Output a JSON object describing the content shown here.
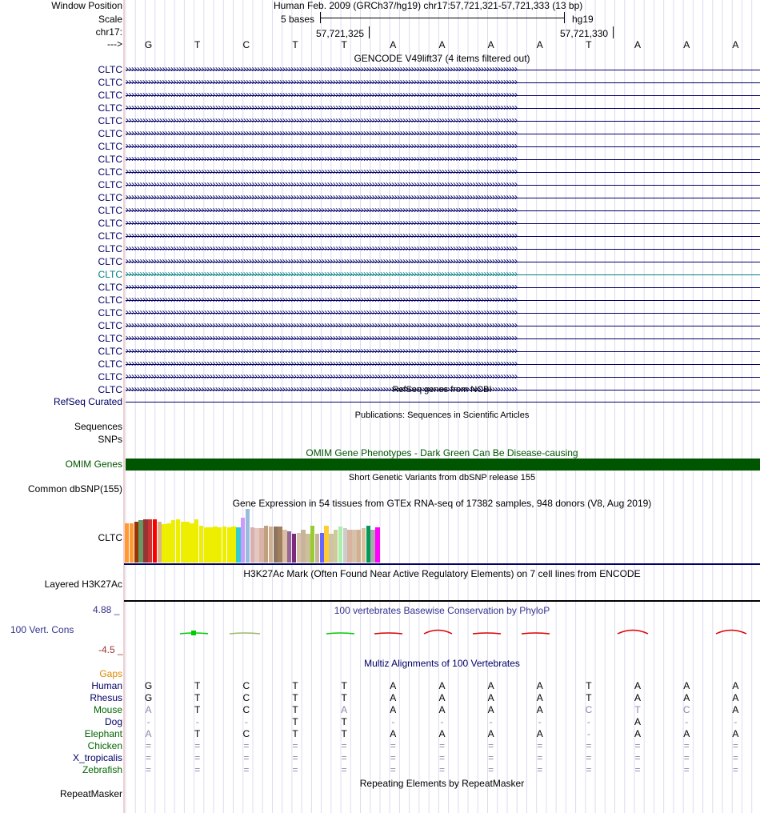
{
  "header": {
    "labels": [
      "Window Position",
      "Scale",
      "chr17:",
      "--->"
    ],
    "position_text": "Human Feb. 2009 (GRCh37/hg19)   chr17:57,721,321-57,721,333 (13 bp)",
    "scale_text": "5 bases",
    "assembly": "hg19",
    "coord_left": "57,721,325",
    "coord_right": "57,721,330",
    "bases": [
      "G",
      "T",
      "C",
      "T",
      "T",
      "A",
      "A",
      "A",
      "A",
      "T",
      "A",
      "A",
      "A"
    ]
  },
  "gencode": {
    "title": "GENCODE V49lift37 (4 items filtered out)",
    "genes": [
      "CLTC",
      "CLTC",
      "CLTC",
      "CLTC",
      "CLTC",
      "CLTC",
      "CLTC",
      "CLTC",
      "CLTC",
      "CLTC",
      "CLTC",
      "CLTC",
      "CLTC",
      "CLTC",
      "CLTC",
      "CLTC",
      "CLTC",
      "CLTC",
      "CLTC",
      "CLTC",
      "CLTC",
      "CLTC",
      "CLTC",
      "CLTC",
      "CLTC",
      "CLTC"
    ],
    "highlight_index": 16
  },
  "refseq": {
    "title": "RefSeq genes from NCBI",
    "label": "RefSeq Curated"
  },
  "publications": {
    "title": "Publications: Sequences in Scientific Articles",
    "label1": "Sequences",
    "label2": "SNPs"
  },
  "omim": {
    "title": "OMIM Gene Phenotypes - Dark Green Can Be Disease-causing",
    "label": "OMIM Genes",
    "color": "#005500"
  },
  "dbsnp": {
    "title": "Short Genetic Variants from dbSNP release 155",
    "label": "Common dbSNP(155)"
  },
  "gtex": {
    "title": "Gene Expression in 54 tissues from GTEx RNA-seq of 17382 samples, 948 donors (V8, Aug 2019)",
    "label": "CLTC",
    "bars": [
      {
        "c": "#ff9933",
        "v": 0.72
      },
      {
        "c": "#ff9933",
        "v": 0.72
      },
      {
        "c": "#993300",
        "v": 0.75
      },
      {
        "c": "#669966",
        "v": 0.78
      },
      {
        "c": "#993333",
        "v": 0.8
      },
      {
        "c": "#cc3333",
        "v": 0.8
      },
      {
        "c": "#ff0000",
        "v": 0.8
      },
      {
        "c": "#d9b38c",
        "v": 0.75
      },
      {
        "c": "#eeee00",
        "v": 0.7
      },
      {
        "c": "#eeee00",
        "v": 0.72
      },
      {
        "c": "#eeee00",
        "v": 0.78
      },
      {
        "c": "#eeee00",
        "v": 0.8
      },
      {
        "c": "#eeee00",
        "v": 0.75
      },
      {
        "c": "#eeee00",
        "v": 0.75
      },
      {
        "c": "#eeee00",
        "v": 0.72
      },
      {
        "c": "#eeee00",
        "v": 0.8
      },
      {
        "c": "#eeee00",
        "v": 0.68
      },
      {
        "c": "#eeee00",
        "v": 0.65
      },
      {
        "c": "#eeee00",
        "v": 0.65
      },
      {
        "c": "#eeee00",
        "v": 0.66
      },
      {
        "c": "#eeee00",
        "v": 0.65
      },
      {
        "c": "#eeee00",
        "v": 0.66
      },
      {
        "c": "#eeee00",
        "v": 0.65
      },
      {
        "c": "#eeee00",
        "v": 0.66
      },
      {
        "c": "#33cccc",
        "v": 0.65
      },
      {
        "c": "#cc99ff",
        "v": 0.83
      },
      {
        "c": "#99bbdd",
        "v": 0.98
      },
      {
        "c": "#d7b0b0",
        "v": 0.65
      },
      {
        "c": "#e5c7c0",
        "v": 0.63
      },
      {
        "c": "#d9b3a8",
        "v": 0.63
      },
      {
        "c": "#c0a080",
        "v": 0.68
      },
      {
        "c": "#d0b090",
        "v": 0.66
      },
      {
        "c": "#8c7560",
        "v": 0.66
      },
      {
        "c": "#a08060",
        "v": 0.66
      },
      {
        "c": "#d9c0a0",
        "v": 0.6
      },
      {
        "c": "#996699",
        "v": 0.57
      },
      {
        "c": "#7a2b7a",
        "v": 0.53
      },
      {
        "c": "#d6c0a8",
        "v": 0.55
      },
      {
        "c": "#c8b49c",
        "v": 0.6
      },
      {
        "c": "#ccc099",
        "v": 0.53
      },
      {
        "c": "#99cc33",
        "v": 0.68
      },
      {
        "c": "#c8b49c",
        "v": 0.53
      },
      {
        "c": "#6666ff",
        "v": 0.55
      },
      {
        "c": "#ffcc33",
        "v": 0.68
      },
      {
        "c": "#d0c2a8",
        "v": 0.53
      },
      {
        "c": "#cccc99",
        "v": 0.6
      },
      {
        "c": "#aaeeaa",
        "v": 0.66
      },
      {
        "c": "#cccccc",
        "v": 0.63
      },
      {
        "c": "#d9b3a0",
        "v": 0.6
      },
      {
        "c": "#d6c2aa",
        "v": 0.6
      },
      {
        "c": "#d0b090",
        "v": 0.6
      },
      {
        "c": "#d9c0a0",
        "v": 0.63
      },
      {
        "c": "#009955",
        "v": 0.68
      },
      {
        "c": "#aaaaaa",
        "v": 0.6
      },
      {
        "c": "#ff00ff",
        "v": 0.65
      }
    ]
  },
  "h3k27ac": {
    "title": "H3K27Ac Mark (Often Found Near Active Regulatory Elements) on 7 cell lines from ENCODE",
    "label": "Layered H3K27Ac"
  },
  "phylop": {
    "title": "100 vertebrates Basewise Conservation by PhyloP",
    "label": "100 Vert. Cons",
    "max": "4.88 _",
    "min": "-4.5 _"
  },
  "multiz": {
    "title": "Multiz Alignments of 100 Vertebrates",
    "gaps_label": "Gaps",
    "species": [
      {
        "name": "Human",
        "color": "#000066",
        "seq": [
          "G",
          "T",
          "C",
          "T",
          "T",
          "A",
          "A",
          "A",
          "A",
          "T",
          "A",
          "A",
          "A"
        ]
      },
      {
        "name": "Rhesus",
        "color": "#000066",
        "seq": [
          "G",
          "T",
          "C",
          "T",
          "T",
          "A",
          "A",
          "A",
          "A",
          "T",
          "A",
          "A",
          "A"
        ]
      },
      {
        "name": "Mouse",
        "color": "#006600",
        "seq": [
          "A",
          "T",
          "C",
          "T",
          "A",
          "A",
          "A",
          "A",
          "A",
          "C",
          "T",
          "C",
          "A"
        ]
      },
      {
        "name": "Dog",
        "color": "#000066",
        "seq": [
          "-",
          "-",
          "-",
          "T",
          "T",
          "-",
          "-",
          "-",
          "-",
          "-",
          "A",
          "-",
          "-"
        ]
      },
      {
        "name": "Elephant",
        "color": "#006600",
        "seq": [
          "A",
          "T",
          "C",
          "T",
          "T",
          "A",
          "A",
          "A",
          "A",
          "-",
          "A",
          "A",
          "A"
        ]
      },
      {
        "name": "Chicken",
        "color": "#006600",
        "seq": [
          "=",
          "=",
          "=",
          "=",
          "=",
          "=",
          "=",
          "=",
          "=",
          "=",
          "=",
          "=",
          "="
        ]
      },
      {
        "name": "X_tropicalis",
        "color": "#000066",
        "seq": [
          "=",
          "=",
          "=",
          "=",
          "=",
          "=",
          "=",
          "=",
          "=",
          "=",
          "=",
          "=",
          "="
        ]
      },
      {
        "name": "Zebrafish",
        "color": "#006600",
        "seq": [
          "=",
          "=",
          "=",
          "=",
          "=",
          "=",
          "=",
          "=",
          "=",
          "=",
          "=",
          "=",
          "="
        ]
      }
    ],
    "mismatch": [
      [
        0,
        0,
        0,
        0,
        0,
        0,
        0,
        0,
        0,
        0,
        0,
        0,
        0
      ],
      [
        0,
        0,
        0,
        0,
        0,
        0,
        0,
        0,
        0,
        0,
        0,
        0,
        0
      ],
      [
        1,
        0,
        0,
        0,
        1,
        0,
        0,
        0,
        0,
        1,
        1,
        1,
        0
      ],
      [
        1,
        1,
        1,
        0,
        0,
        1,
        1,
        1,
        1,
        1,
        0,
        1,
        1
      ],
      [
        1,
        0,
        0,
        0,
        0,
        0,
        0,
        0,
        0,
        1,
        0,
        0,
        0
      ],
      [
        1,
        1,
        1,
        1,
        1,
        1,
        1,
        1,
        1,
        1,
        1,
        1,
        1
      ],
      [
        1,
        1,
        1,
        1,
        1,
        1,
        1,
        1,
        1,
        1,
        1,
        1,
        1
      ],
      [
        1,
        1,
        1,
        1,
        1,
        1,
        1,
        1,
        1,
        1,
        1,
        1,
        1
      ]
    ]
  },
  "repeatmasker": {
    "title": "Repeating Elements by RepeatMasker",
    "label": "RepeatMasker"
  },
  "colors": {
    "navy": "#000066",
    "teal": "#007f7f",
    "gaps": "#dd8800",
    "phylop_pos": "#00cc00",
    "phylop_neg": "#dd0000"
  }
}
